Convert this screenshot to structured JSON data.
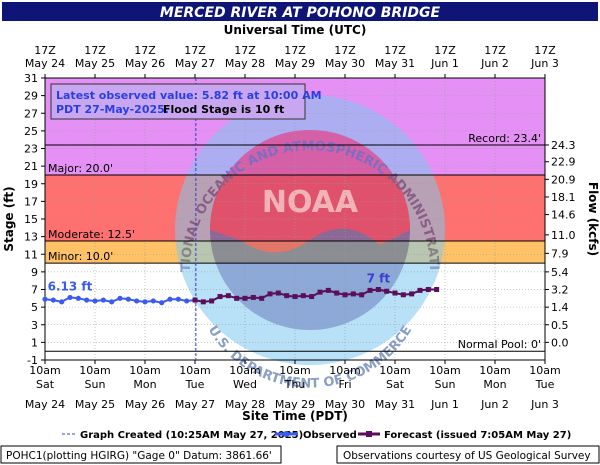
{
  "chart_data": {
    "type": "line",
    "title": "MERCED RIVER AT POHONO BRIDGE",
    "top_axis_label": "Universal Time (UTC)",
    "xlabel": "Site Time (PDT)",
    "ylabel_left": "Stage (ft)",
    "ylabel_right": "Flow (kcfs)",
    "ylim": [
      -1,
      31
    ],
    "x_range": [
      "2025-05-24T10:00",
      "2025-06-03T10:00"
    ],
    "left_ticks": [
      -1,
      1,
      3,
      5,
      7,
      9,
      11,
      13,
      15,
      17,
      19,
      21,
      23,
      25,
      27,
      29,
      31
    ],
    "right_ticks": [
      {
        "stage": 23.4,
        "label": "24.3"
      },
      {
        "stage": 21.5,
        "label": "22.9"
      },
      {
        "stage": 19.5,
        "label": "20.9"
      },
      {
        "stage": 17.5,
        "label": "18.1"
      },
      {
        "stage": 15.5,
        "label": "14.6"
      },
      {
        "stage": 13.2,
        "label": "11.0"
      },
      {
        "stage": 11.1,
        "label": "7.9"
      },
      {
        "stage": 9.0,
        "label": "5.4"
      },
      {
        "stage": 7.0,
        "label": "3.2"
      },
      {
        "stage": 5.0,
        "label": "1.4"
      },
      {
        "stage": 3.0,
        "label": "0.5"
      },
      {
        "stage": 1.0,
        "label": "0.0"
      }
    ],
    "bottom_ticks": [
      {
        "time": "10am",
        "day": "Sat",
        "date": "May 24"
      },
      {
        "time": "10am",
        "day": "Sun",
        "date": "May 25"
      },
      {
        "time": "10am",
        "day": "Mon",
        "date": "May 26"
      },
      {
        "time": "10am",
        "day": "Tue",
        "date": "May 27"
      },
      {
        "time": "10am",
        "day": "Wed",
        "date": "May 28"
      },
      {
        "time": "10am",
        "day": "Thu",
        "date": "May 29"
      },
      {
        "time": "10am",
        "day": "Fri",
        "date": "May 30"
      },
      {
        "time": "10am",
        "day": "Sat",
        "date": "May 31"
      },
      {
        "time": "10am",
        "day": "Sun",
        "date": "Jun 1"
      },
      {
        "time": "10am",
        "day": "Mon",
        "date": "Jun 2"
      },
      {
        "time": "10am",
        "day": "Tue",
        "date": "Jun 3"
      }
    ],
    "top_ticks": [
      {
        "time": "17Z",
        "date": "May 24"
      },
      {
        "time": "17Z",
        "date": "May 25"
      },
      {
        "time": "17Z",
        "date": "May 26"
      },
      {
        "time": "17Z",
        "date": "May 27"
      },
      {
        "time": "17Z",
        "date": "May 28"
      },
      {
        "time": "17Z",
        "date": "May 29"
      },
      {
        "time": "17Z",
        "date": "May 30"
      },
      {
        "time": "17Z",
        "date": "May 31"
      },
      {
        "time": "17Z",
        "date": "Jun 1"
      },
      {
        "time": "17Z",
        "date": "Jun 2"
      },
      {
        "time": "17Z",
        "date": "Jun 3"
      }
    ],
    "flood_categories": [
      {
        "name": "Record",
        "label": "Record: 23.4'",
        "from": 23.4,
        "to": 31,
        "color": "#e590f5"
      },
      {
        "name": "Major",
        "label": "Major: 20.0'",
        "from": 20.0,
        "to": 23.4,
        "color": "#e590f5"
      },
      {
        "name": "Moderate",
        "label": "Moderate: 12.5'",
        "from": 12.5,
        "to": 20.0,
        "color": "#ff7070"
      },
      {
        "name": "Minor",
        "label": "Minor: 10.0'",
        "from": 10.0,
        "to": 12.5,
        "color": "#ffc266"
      }
    ],
    "normal_pool": {
      "label": "Normal Pool: 0'",
      "value": 0
    },
    "graph_created_x": "2025-05-27T10:25",
    "observed": {
      "color": "#3b5bf0",
      "peak_label": "6.13 ft",
      "peak_point": {
        "x": "2025-05-24T22:00",
        "y": 6.1
      },
      "points": [
        {
          "x": "2025-05-24T10:00",
          "y": 5.9
        },
        {
          "x": "2025-05-24T14:00",
          "y": 5.8
        },
        {
          "x": "2025-05-24T18:00",
          "y": 5.6
        },
        {
          "x": "2025-05-24T22:00",
          "y": 6.1
        },
        {
          "x": "2025-05-25T02:00",
          "y": 6.0
        },
        {
          "x": "2025-05-25T06:00",
          "y": 5.8
        },
        {
          "x": "2025-05-25T10:00",
          "y": 5.7
        },
        {
          "x": "2025-05-25T14:00",
          "y": 5.8
        },
        {
          "x": "2025-05-25T18:00",
          "y": 5.6
        },
        {
          "x": "2025-05-25T22:00",
          "y": 6.0
        },
        {
          "x": "2025-05-26T02:00",
          "y": 5.9
        },
        {
          "x": "2025-05-26T06:00",
          "y": 5.7
        },
        {
          "x": "2025-05-26T10:00",
          "y": 5.6
        },
        {
          "x": "2025-05-26T14:00",
          "y": 5.7
        },
        {
          "x": "2025-05-26T18:00",
          "y": 5.5
        },
        {
          "x": "2025-05-26T22:00",
          "y": 5.9
        },
        {
          "x": "2025-05-27T02:00",
          "y": 5.9
        },
        {
          "x": "2025-05-27T06:00",
          "y": 5.7
        },
        {
          "x": "2025-05-27T10:00",
          "y": 5.8
        }
      ]
    },
    "forecast": {
      "color": "#5a0f5a",
      "peak_label": "7 ft",
      "peak_point": {
        "x": "2025-05-31T02:00",
        "y": 7.0
      },
      "points": [
        {
          "x": "2025-05-27T10:00",
          "y": 5.8
        },
        {
          "x": "2025-05-27T14:00",
          "y": 5.6
        },
        {
          "x": "2025-05-27T18:00",
          "y": 5.7
        },
        {
          "x": "2025-05-27T22:00",
          "y": 6.2
        },
        {
          "x": "2025-05-28T02:00",
          "y": 6.3
        },
        {
          "x": "2025-05-28T06:00",
          "y": 6.0
        },
        {
          "x": "2025-05-28T10:00",
          "y": 6.0
        },
        {
          "x": "2025-05-28T14:00",
          "y": 6.1
        },
        {
          "x": "2025-05-28T18:00",
          "y": 6.0
        },
        {
          "x": "2025-05-28T22:00",
          "y": 6.5
        },
        {
          "x": "2025-05-29T02:00",
          "y": 6.6
        },
        {
          "x": "2025-05-29T06:00",
          "y": 6.3
        },
        {
          "x": "2025-05-29T10:00",
          "y": 6.2
        },
        {
          "x": "2025-05-29T14:00",
          "y": 6.3
        },
        {
          "x": "2025-05-29T18:00",
          "y": 6.2
        },
        {
          "x": "2025-05-29T22:00",
          "y": 6.7
        },
        {
          "x": "2025-05-30T02:00",
          "y": 6.9
        },
        {
          "x": "2025-05-30T06:00",
          "y": 6.6
        },
        {
          "x": "2025-05-30T10:00",
          "y": 6.4
        },
        {
          "x": "2025-05-30T14:00",
          "y": 6.5
        },
        {
          "x": "2025-05-30T18:00",
          "y": 6.4
        },
        {
          "x": "2025-05-30T22:00",
          "y": 6.9
        },
        {
          "x": "2025-05-31T02:00",
          "y": 7.0
        },
        {
          "x": "2025-05-31T06:00",
          "y": 6.8
        },
        {
          "x": "2025-05-31T10:00",
          "y": 6.6
        },
        {
          "x": "2025-05-31T14:00",
          "y": 6.4
        },
        {
          "x": "2025-05-31T18:00",
          "y": 6.5
        },
        {
          "x": "2025-05-31T22:00",
          "y": 6.9
        },
        {
          "x": "2025-06-01T02:00",
          "y": 7.0
        },
        {
          "x": "2025-06-01T06:00",
          "y": 7.0
        }
      ]
    }
  },
  "info_box": {
    "line1": "Latest observed value: 5.82 ft at 10:00 AM",
    "line2": "PDT 27-May-2025.",
    "flood_stage": "Flood Stage is 10 ft"
  },
  "watermark": {
    "ring_text": "NATIONAL OCEANIC AND ATMOSPHERIC ADMINISTRATION",
    "center_text": "NOAA",
    "bottom_text": "U.S. DEPARTMENT OF COMMERCE"
  },
  "legend": {
    "graph_created": "Graph Created (10:25AM May 27, 2025)",
    "observed": "Observed",
    "forecast": "Forecast (issued 7:05AM May 27)"
  },
  "footer": {
    "left": "POHC1(plotting HGIRG) \"Gage 0\" Datum: 3861.66'",
    "right": "Observations courtesy of US Geological Survey"
  }
}
